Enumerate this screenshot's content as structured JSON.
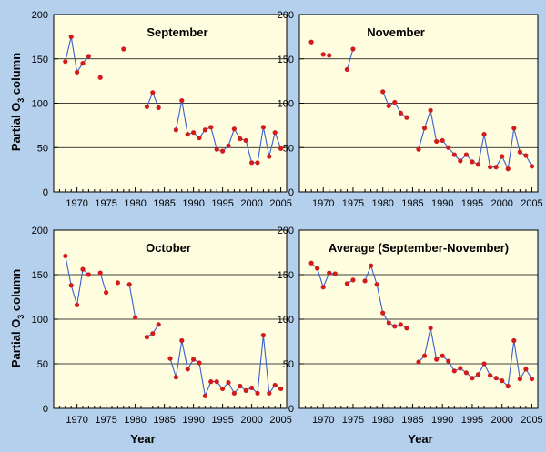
{
  "y_label_main": "Partial O",
  "y_label_sub": "3",
  "y_label_tail": " column",
  "x_label": "Year",
  "colors": {
    "background": "#b5d0ec",
    "plot_bg": "#fffde0",
    "line": "#3a5fd0",
    "marker": "#d21c1c",
    "grid": "#000000"
  },
  "chart_data": [
    {
      "type": "line",
      "title": "September",
      "xlim": [
        1966,
        2006
      ],
      "ylim": [
        0,
        200
      ],
      "xticks": [
        1970,
        1975,
        1980,
        1985,
        1990,
        1995,
        2000,
        2005
      ],
      "yticks": [
        0,
        50,
        100,
        150,
        200
      ],
      "grid": "horizontal",
      "segments": [
        [
          [
            1968,
            147
          ],
          [
            1969,
            175
          ],
          [
            1970,
            135
          ],
          [
            1971,
            145
          ],
          [
            1972,
            153
          ]
        ],
        [
          [
            1974,
            129
          ]
        ],
        [
          [
            1978,
            161
          ]
        ],
        [
          [
            1982,
            96
          ],
          [
            1983,
            112
          ],
          [
            1984,
            95
          ]
        ],
        [
          [
            1987,
            70
          ],
          [
            1988,
            103
          ],
          [
            1989,
            65
          ],
          [
            1990,
            67
          ],
          [
            1991,
            61
          ],
          [
            1992,
            70
          ],
          [
            1993,
            73
          ],
          [
            1994,
            48
          ],
          [
            1995,
            46
          ],
          [
            1996,
            52
          ],
          [
            1997,
            71
          ],
          [
            1998,
            60
          ],
          [
            1999,
            58
          ],
          [
            2000,
            33
          ],
          [
            2001,
            33
          ],
          [
            2002,
            73
          ],
          [
            2003,
            40
          ],
          [
            2004,
            67
          ],
          [
            2005,
            49
          ]
        ]
      ]
    },
    {
      "type": "line",
      "title": "November",
      "xlim": [
        1966,
        2006
      ],
      "ylim": [
        0,
        200
      ],
      "xticks": [
        1970,
        1975,
        1980,
        1985,
        1990,
        1995,
        2000,
        2005
      ],
      "yticks": [
        0,
        50,
        100,
        150,
        200
      ],
      "grid": "horizontal",
      "segments": [
        [
          [
            1968,
            169
          ]
        ],
        [
          [
            1970,
            155
          ],
          [
            1971,
            154
          ]
        ],
        [
          [
            1974,
            138
          ],
          [
            1975,
            161
          ]
        ],
        [
          [
            1980,
            113
          ],
          [
            1981,
            97
          ],
          [
            1982,
            101
          ],
          [
            1983,
            89
          ],
          [
            1984,
            84
          ]
        ],
        [
          [
            1986,
            48
          ],
          [
            1987,
            72
          ],
          [
            1988,
            92
          ],
          [
            1989,
            57
          ],
          [
            1990,
            58
          ],
          [
            1991,
            50
          ],
          [
            1992,
            42
          ],
          [
            1993,
            35
          ],
          [
            1994,
            42
          ],
          [
            1995,
            34
          ],
          [
            1996,
            31
          ],
          [
            1997,
            65
          ],
          [
            1998,
            28
          ],
          [
            1999,
            28
          ],
          [
            2000,
            40
          ],
          [
            2001,
            26
          ],
          [
            2002,
            72
          ],
          [
            2003,
            45
          ],
          [
            2004,
            41
          ],
          [
            2005,
            29
          ]
        ]
      ]
    },
    {
      "type": "line",
      "title": "October",
      "xlim": [
        1966,
        2006
      ],
      "ylim": [
        0,
        200
      ],
      "xticks": [
        1970,
        1975,
        1980,
        1985,
        1990,
        1995,
        2000,
        2005
      ],
      "yticks": [
        0,
        50,
        100,
        150,
        200
      ],
      "grid": "horizontal",
      "segments": [
        [
          [
            1968,
            171
          ],
          [
            1969,
            138
          ],
          [
            1970,
            116
          ],
          [
            1971,
            156
          ],
          [
            1972,
            150
          ]
        ],
        [
          [
            1974,
            152
          ],
          [
            1975,
            130
          ]
        ],
        [
          [
            1977,
            141
          ]
        ],
        [
          [
            1979,
            139
          ],
          [
            1980,
            102
          ]
        ],
        [
          [
            1982,
            80
          ],
          [
            1983,
            84
          ],
          [
            1984,
            94
          ]
        ],
        [
          [
            1986,
            56
          ],
          [
            1987,
            35
          ],
          [
            1988,
            76
          ],
          [
            1989,
            44
          ],
          [
            1990,
            55
          ],
          [
            1991,
            51
          ],
          [
            1992,
            14
          ],
          [
            1993,
            30
          ],
          [
            1994,
            30
          ],
          [
            1995,
            22
          ],
          [
            1996,
            29
          ],
          [
            1997,
            17
          ],
          [
            1998,
            25
          ],
          [
            1999,
            20
          ],
          [
            2000,
            23
          ],
          [
            2001,
            17
          ],
          [
            2002,
            82
          ],
          [
            2003,
            17
          ],
          [
            2004,
            26
          ],
          [
            2005,
            22
          ]
        ]
      ]
    },
    {
      "type": "line",
      "title": "Average (September-November)",
      "xlim": [
        1966,
        2006
      ],
      "ylim": [
        0,
        200
      ],
      "xticks": [
        1970,
        1975,
        1980,
        1985,
        1990,
        1995,
        2000,
        2005
      ],
      "yticks": [
        0,
        50,
        100,
        150,
        200
      ],
      "grid": "horizontal",
      "segments": [
        [
          [
            1968,
            163
          ],
          [
            1969,
            157
          ],
          [
            1970,
            136
          ],
          [
            1971,
            152
          ],
          [
            1972,
            151
          ]
        ],
        [
          [
            1974,
            140
          ],
          [
            1975,
            144
          ]
        ],
        [
          [
            1977,
            143
          ],
          [
            1978,
            160
          ],
          [
            1979,
            139
          ],
          [
            1980,
            107
          ],
          [
            1981,
            96
          ],
          [
            1982,
            92
          ],
          [
            1983,
            94
          ],
          [
            1984,
            90
          ]
        ],
        [
          [
            1986,
            52
          ],
          [
            1987,
            59
          ],
          [
            1988,
            90
          ],
          [
            1989,
            55
          ],
          [
            1990,
            59
          ],
          [
            1991,
            53
          ],
          [
            1992,
            42
          ],
          [
            1993,
            45
          ],
          [
            1994,
            40
          ],
          [
            1995,
            34
          ],
          [
            1996,
            38
          ],
          [
            1997,
            50
          ],
          [
            1998,
            37
          ],
          [
            1999,
            34
          ],
          [
            2000,
            31
          ],
          [
            2001,
            25
          ],
          [
            2002,
            76
          ],
          [
            2003,
            33
          ],
          [
            2004,
            44
          ],
          [
            2005,
            33
          ]
        ]
      ]
    }
  ]
}
